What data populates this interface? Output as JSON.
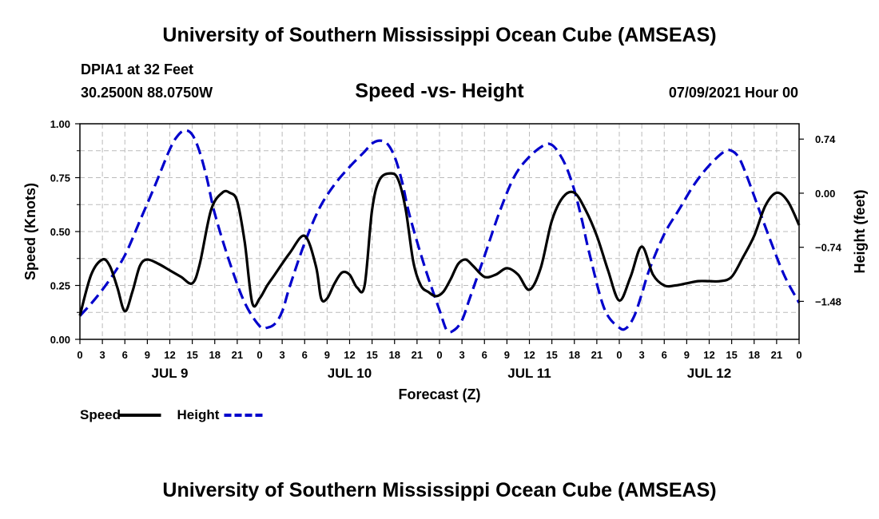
{
  "page": {
    "title_top": "University of Southern Mississippi Ocean Cube (AMSEAS)",
    "title_bottom": "University of Southern Mississippi Ocean Cube (AMSEAS)",
    "station": "DPIA1 at 32 Feet",
    "coords": "30.2500N  88.0750W",
    "datetime": "07/09/2021 Hour 00"
  },
  "chart_data": {
    "type": "line",
    "title": "Speed -vs- Height",
    "xlabel": "Forecast (Z)",
    "ylabel": "Speed (Knots)",
    "y2label": "Height (feet)",
    "xlim": [
      0,
      96
    ],
    "ylim": [
      0,
      1.0
    ],
    "y2lim": [
      -2.0,
      0.95
    ],
    "x_ticks": [
      0,
      3,
      6,
      9,
      12,
      15,
      18,
      21,
      24,
      27,
      30,
      33,
      36,
      39,
      42,
      45,
      48,
      51,
      54,
      57,
      60,
      63,
      66,
      69,
      72,
      75,
      78,
      81,
      84,
      87,
      90,
      93,
      96
    ],
    "x_tick_labels": [
      "0",
      "3",
      "6",
      "9",
      "12",
      "15",
      "18",
      "21",
      "0",
      "3",
      "6",
      "9",
      "12",
      "15",
      "18",
      "21",
      "0",
      "3",
      "6",
      "9",
      "12",
      "15",
      "18",
      "21",
      "0",
      "3",
      "6",
      "9",
      "12",
      "15",
      "18",
      "21",
      "0"
    ],
    "day_labels": [
      {
        "x": 12,
        "label": "JUL 9"
      },
      {
        "x": 36,
        "label": "JUL 10"
      },
      {
        "x": 60,
        "label": "JUL 11"
      },
      {
        "x": 84,
        "label": "JUL 12"
      }
    ],
    "y_ticks": [
      0.0,
      0.25,
      0.5,
      0.75,
      1.0
    ],
    "y_tick_labels": [
      "0.00",
      "0.25",
      "0.50",
      "0.75",
      "1.00"
    ],
    "y2_ticks": [
      0.74,
      0.0,
      -0.74,
      -1.48
    ],
    "y2_tick_labels": [
      "0.74",
      "0.00",
      "−0.74",
      "−1.48"
    ],
    "series": [
      {
        "name": "Speed",
        "axis": "left",
        "color": "#000000",
        "dash": "solid",
        "x": [
          0,
          1.5,
          3,
          4,
          5,
          6,
          7,
          8,
          9,
          10.5,
          12,
          13.5,
          15,
          16,
          17.5,
          19,
          20,
          21,
          22,
          23,
          24,
          25,
          26,
          28,
          30,
          31.5,
          32.2,
          33,
          34,
          35,
          36,
          37,
          38,
          39,
          40,
          41.5,
          42.5,
          43.5,
          44.5,
          45.5,
          46.5,
          47.5,
          48.5,
          49.5,
          50.5,
          51.5,
          52.5,
          54,
          55.5,
          57,
          58.5,
          60,
          61.5,
          63,
          64.5,
          66,
          67.5,
          69,
          70.5,
          72,
          73.5,
          75,
          76.5,
          78,
          79.5,
          81,
          82.5,
          84,
          85.5,
          87,
          88.5,
          90,
          91.5,
          93,
          94.5,
          96
        ],
        "values": [
          0.11,
          0.3,
          0.37,
          0.34,
          0.24,
          0.13,
          0.22,
          0.34,
          0.37,
          0.35,
          0.32,
          0.29,
          0.26,
          0.35,
          0.6,
          0.68,
          0.68,
          0.64,
          0.45,
          0.17,
          0.19,
          0.25,
          0.3,
          0.4,
          0.48,
          0.34,
          0.19,
          0.19,
          0.26,
          0.31,
          0.3,
          0.24,
          0.25,
          0.6,
          0.74,
          0.77,
          0.74,
          0.6,
          0.36,
          0.25,
          0.22,
          0.2,
          0.22,
          0.28,
          0.35,
          0.37,
          0.34,
          0.29,
          0.3,
          0.33,
          0.3,
          0.23,
          0.33,
          0.55,
          0.66,
          0.68,
          0.6,
          0.48,
          0.32,
          0.18,
          0.29,
          0.43,
          0.3,
          0.25,
          0.25,
          0.26,
          0.27,
          0.27,
          0.27,
          0.29,
          0.38,
          0.48,
          0.62,
          0.68,
          0.64,
          0.53
        ]
      },
      {
        "name": "Height",
        "axis": "right",
        "color": "#0000cc",
        "dash": "dashed",
        "x": [
          0,
          2,
          4,
          6,
          8,
          10,
          12,
          13,
          14,
          15,
          16,
          17,
          18,
          20,
          22,
          24,
          25,
          26,
          27,
          28,
          30,
          32,
          34,
          36,
          38,
          39,
          40,
          41,
          42,
          43,
          44,
          46,
          48,
          49,
          50,
          51,
          52,
          54,
          56,
          58,
          60,
          62,
          63,
          64,
          65,
          66,
          67,
          68,
          70,
          72,
          73,
          74,
          75,
          76,
          78,
          80,
          82,
          84,
          86,
          87,
          88,
          89,
          90,
          92,
          94,
          96
        ],
        "values": [
          -1.68,
          -1.45,
          -1.18,
          -0.85,
          -0.38,
          0.1,
          0.6,
          0.78,
          0.86,
          0.8,
          0.56,
          0.18,
          -0.28,
          -0.95,
          -1.5,
          -1.82,
          -1.84,
          -1.79,
          -1.62,
          -1.28,
          -0.68,
          -0.2,
          0.12,
          0.36,
          0.57,
          0.68,
          0.72,
          0.68,
          0.5,
          0.16,
          -0.3,
          -1.0,
          -1.6,
          -1.88,
          -1.87,
          -1.74,
          -1.45,
          -0.86,
          -0.26,
          0.23,
          0.5,
          0.66,
          0.66,
          0.54,
          0.34,
          0.04,
          -0.36,
          -0.82,
          -1.58,
          -1.84,
          -1.84,
          -1.68,
          -1.38,
          -1.05,
          -0.56,
          -0.22,
          0.12,
          0.38,
          0.57,
          0.58,
          0.48,
          0.24,
          -0.04,
          -0.6,
          -1.12,
          -1.5
        ]
      }
    ],
    "legend": [
      {
        "label": "Speed",
        "color": "#000000",
        "dash": "solid"
      },
      {
        "label": "Height",
        "color": "#0000cc",
        "dash": "dashed"
      }
    ],
    "grid": true
  }
}
